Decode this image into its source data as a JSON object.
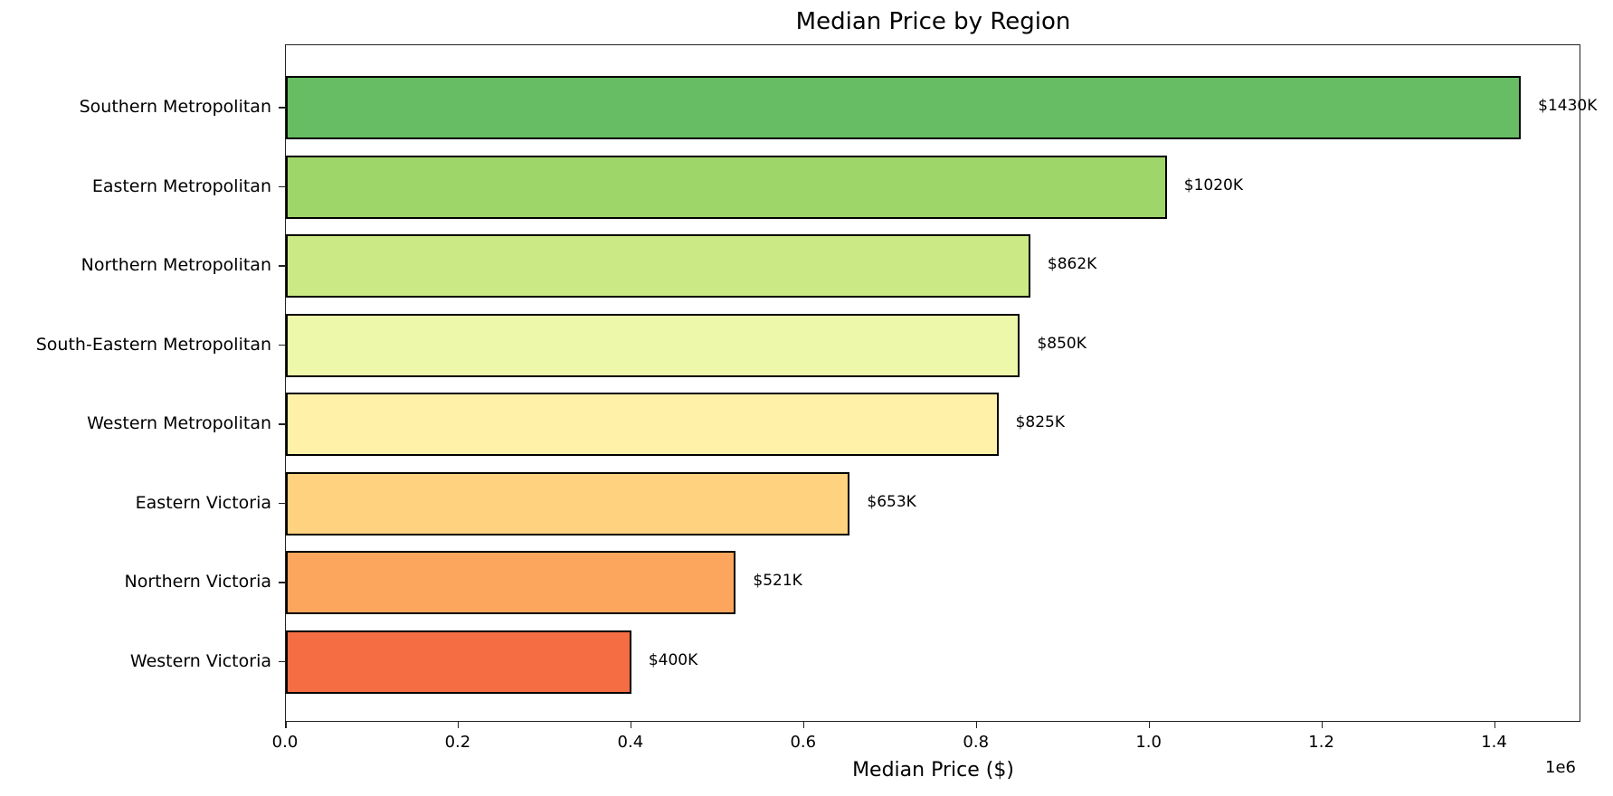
{
  "chart_data": {
    "type": "bar",
    "orientation": "horizontal",
    "title": "Median Price by Region",
    "xlabel": "Median Price ($)",
    "ylabel": "",
    "x_offset_label": "1e6",
    "xlim": [
      0,
      1500000
    ],
    "xticks": [
      0.0,
      0.2,
      0.4,
      0.6,
      0.8,
      1.0,
      1.2,
      1.4
    ],
    "xtick_labels": [
      "0.0",
      "0.2",
      "0.4",
      "0.6",
      "0.8",
      "1.0",
      "1.2",
      "1.4"
    ],
    "grid": false,
    "legend": null,
    "categories": [
      "Southern Metropolitan",
      "Eastern Metropolitan",
      "Northern Metropolitan",
      "South-Eastern Metropolitan",
      "Western Metropolitan",
      "Eastern Victoria",
      "Northern Victoria",
      "Western Victoria"
    ],
    "values": [
      1430000,
      1020000,
      862000,
      850000,
      825000,
      653000,
      521000,
      400000
    ],
    "value_labels": [
      "$1430K",
      "$1020K",
      "$862K",
      "$850K",
      "$825K",
      "$653K",
      "$521K",
      "$400K"
    ],
    "colors": [
      "#66bd63",
      "#9fd66a",
      "#cbe985",
      "#eef8ab",
      "#fff1a8",
      "#fed27f",
      "#fca55d",
      "#f46d43"
    ]
  }
}
